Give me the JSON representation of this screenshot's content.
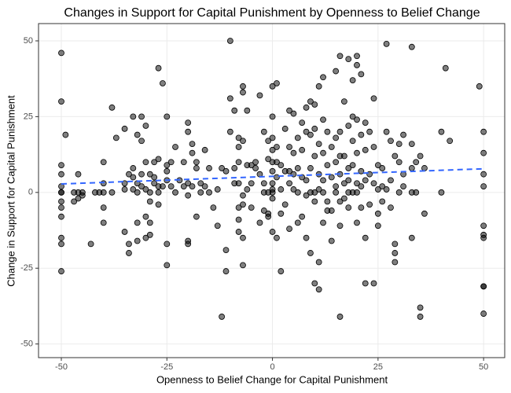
{
  "chart_data": {
    "type": "scatter",
    "title": "Changes in Support for Capital Punishment by Openness to Belief Change",
    "x_label": "Openness to Belief Change for Capital Punishment",
    "y_label": "Change in Support for Capital Punishment",
    "xlim": [
      -55.4,
      55
    ],
    "ylim": [
      -54.5,
      55.7
    ],
    "xticks": [
      -50,
      -25,
      0,
      25,
      50
    ],
    "yticks": [
      -50,
      -25,
      0,
      25,
      50
    ],
    "grid": true,
    "color": "#000000",
    "x": [
      -50,
      -50,
      -50,
      -50,
      -50,
      -50,
      -50,
      -50,
      -50,
      -50,
      -50,
      -50,
      -50,
      -49,
      -47,
      -47,
      -46,
      -46,
      -46,
      -45,
      -45,
      -43,
      -42,
      -41,
      -40,
      -40,
      -40,
      -40,
      -40,
      -38,
      -38,
      -37,
      -35,
      -35,
      -35,
      -35,
      -34,
      -34,
      -34,
      -33,
      -33,
      -33,
      -33,
      -32,
      -32,
      -32,
      -32,
      -32,
      -31,
      -31,
      -31,
      -31,
      -30,
      -30,
      -30,
      -30,
      -30,
      -29,
      -29,
      -29,
      -29,
      -29,
      -28,
      -28,
      -28,
      -27,
      -27,
      -27,
      -27,
      -27,
      -26,
      -26,
      -25,
      -25,
      -25,
      -25,
      -25,
      -25,
      -24,
      -24,
      -23,
      -23,
      -22,
      -21,
      -21,
      -20,
      -20,
      -20,
      -20,
      -20,
      -20,
      -19,
      -19,
      -19,
      -18,
      -18,
      -18,
      -17,
      -17,
      -16,
      -16,
      -15,
      -15,
      -14,
      -13,
      -13,
      -12,
      -12,
      -11,
      -11,
      -11,
      -10,
      -10,
      -10,
      -9,
      -9,
      -9,
      -8,
      -8,
      -8,
      -8,
      -8,
      -8,
      -8,
      -7,
      -7,
      -7,
      -7,
      -7,
      -7,
      -7,
      -6,
      -6,
      -6,
      -5,
      -5,
      -5,
      -4,
      -4,
      -3,
      -3,
      -3,
      -2,
      -2,
      -2,
      -2,
      -1,
      -1,
      -1,
      -1,
      -1,
      0,
      0,
      0,
      0,
      0,
      0,
      0,
      0,
      0,
      0,
      0,
      1,
      1,
      1,
      1,
      1,
      2,
      2,
      2,
      2,
      3,
      3,
      3,
      4,
      4,
      4,
      4,
      4,
      5,
      5,
      5,
      5,
      6,
      6,
      6,
      6,
      7,
      7,
      7,
      7,
      8,
      8,
      8,
      8,
      8,
      9,
      9,
      9,
      9,
      9,
      10,
      10,
      10,
      10,
      10,
      10,
      11,
      11,
      11,
      11,
      11,
      11,
      12,
      12,
      12,
      12,
      12,
      12,
      13,
      13,
      13,
      13,
      14,
      14,
      14,
      14,
      15,
      15,
      15,
      15,
      15,
      16,
      16,
      16,
      16,
      16,
      16,
      16,
      17,
      17,
      17,
      17,
      18,
      18,
      18,
      18,
      18,
      18,
      19,
      19,
      19,
      19,
      19,
      20,
      20,
      20,
      20,
      20,
      20,
      20,
      21,
      21,
      21,
      21,
      21,
      22,
      22,
      22,
      22,
      22,
      23,
      23,
      23,
      24,
      24,
      24,
      24,
      25,
      25,
      25,
      25,
      26,
      26,
      26,
      27,
      27,
      27,
      28,
      28,
      28,
      29,
      29,
      29,
      29,
      30,
      30,
      30,
      31,
      31,
      31,
      33,
      33,
      33,
      33,
      33,
      34,
      34,
      35,
      35,
      35,
      36,
      36,
      40,
      40,
      41,
      42,
      49,
      50,
      50,
      50,
      50,
      50,
      50,
      50,
      50,
      50,
      50
    ],
    "values": [
      46,
      30,
      9,
      6,
      2,
      0,
      0,
      -3,
      -5,
      -8,
      -15,
      -17,
      -26,
      19,
      0,
      -3,
      6,
      0,
      -2,
      0,
      -1,
      -17,
      0,
      0,
      10,
      3,
      0,
      -5,
      -10,
      28,
      0,
      18,
      21,
      3,
      1,
      -13,
      6,
      -17,
      -20,
      25,
      8,
      5,
      1,
      19,
      3,
      0,
      -10,
      -16,
      25,
      17,
      6,
      2,
      22,
      10,
      1,
      -8,
      -15,
      6,
      0,
      -3,
      -10,
      -14,
      10,
      5,
      3,
      41,
      11,
      2,
      0,
      -4,
      36,
      2,
      25,
      9,
      7,
      4,
      -17,
      -24,
      10,
      2,
      15,
      0,
      4,
      10,
      2,
      23,
      20,
      3,
      -1,
      -16,
      -17,
      16,
      13,
      2,
      10,
      8,
      -8,
      3,
      0,
      14,
      2,
      8,
      0,
      -5,
      1,
      -11,
      8,
      -41,
      7,
      -19,
      -26,
      50,
      31,
      20,
      27,
      8,
      3,
      18,
      15,
      10,
      3,
      -5,
      -9,
      -13,
      35,
      33,
      17,
      -1,
      -4,
      -15,
      -24,
      27,
      9,
      1,
      9,
      3,
      -5,
      10,
      8,
      32,
      6,
      -10,
      20,
      3,
      0,
      -6,
      17,
      11,
      0,
      -7,
      -8,
      35,
      25,
      18,
      14,
      10,
      7,
      3,
      1,
      0,
      -2,
      -13,
      36,
      15,
      10,
      5,
      -15,
      9,
      1,
      -7,
      -26,
      21,
      7,
      -4,
      27,
      15,
      7,
      3,
      -12,
      26,
      13,
      6,
      1,
      18,
      8,
      0,
      -10,
      23,
      14,
      5,
      -8,
      28,
      20,
      4,
      -1,
      -15,
      30,
      19,
      8,
      0,
      -20,
      29,
      21,
      12,
      0,
      -3,
      -30,
      35,
      16,
      6,
      1,
      -23,
      -32,
      38,
      24,
      13,
      4,
      0,
      -10,
      20,
      9,
      -3,
      -6,
      15,
      5,
      -6,
      -16,
      40,
      18,
      10,
      2,
      0,
      45,
      20,
      12,
      6,
      -3,
      -11,
      -41,
      30,
      12,
      3,
      -2,
      44,
      22,
      8,
      4,
      0,
      -5,
      37,
      25,
      17,
      9,
      0,
      45,
      42,
      24,
      13,
      3,
      0,
      -10,
      39,
      19,
      7,
      2,
      -5,
      23,
      14,
      4,
      -15,
      -30,
      20,
      6,
      -4,
      31,
      15,
      3,
      -30,
      9,
      1,
      -7,
      -11,
      8,
      2,
      -3,
      49,
      20,
      1,
      17,
      4,
      -5,
      12,
      -17,
      -20,
      -23,
      16,
      10,
      0,
      19,
      6,
      2,
      48,
      16,
      8,
      0,
      -15,
      10,
      0,
      12,
      -38,
      -41,
      8,
      -7,
      20,
      0,
      41,
      17,
      35,
      20,
      13,
      6,
      2,
      -11,
      -14,
      -15,
      -31,
      -31,
      -40
    ],
    "trend": {
      "type": "line",
      "color": "#3366ff",
      "x": [
        -50,
        50
      ],
      "values": [
        2.8,
        7.8
      ]
    }
  }
}
